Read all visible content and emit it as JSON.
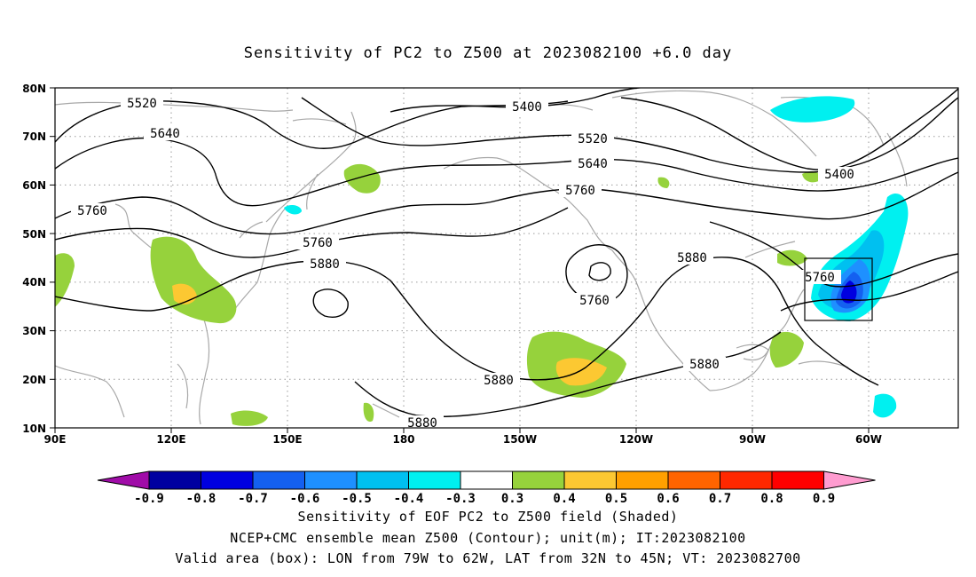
{
  "title": "Sensitivity of PC2 to Z500 at 2023082100 +6.0 day",
  "lat_labels": [
    "80N",
    "70N",
    "60N",
    "50N",
    "40N",
    "30N",
    "20N",
    "10N"
  ],
  "lon_labels": [
    "90E",
    "120E",
    "150E",
    "180",
    "150W",
    "120W",
    "90W",
    "60W"
  ],
  "contour_labels": {
    "c5520a": "5520",
    "c5640a": "5640",
    "c5760a": "5760",
    "c5400a": "5400",
    "c5520b": "5520",
    "c5640b": "5640",
    "c5760b": "5760",
    "c5760c": "5760",
    "c5880a": "5880",
    "c5760d": "5760",
    "c5880b": "5880",
    "c5880c": "5880",
    "c5880d": "5880",
    "c5760e": "5760",
    "c5400b": "5400",
    "c5880e": "5880"
  },
  "colorbar": {
    "labels": [
      "-0.9",
      "-0.8",
      "-0.7",
      "-0.6",
      "-0.5",
      "-0.4",
      "-0.3",
      "0.3",
      "0.4",
      "0.5",
      "0.6",
      "0.7",
      "0.8",
      "0.9"
    ],
    "colors": [
      "#a00ca8",
      "#0000a0",
      "#0000e0",
      "#1460f0",
      "#1e90ff",
      "#00c0f0",
      "#00f0f0",
      "#ffffff",
      "#96d23c",
      "#fcc832",
      "#ffa000",
      "#ff6400",
      "#ff2800",
      "#ff0000",
      "#ff9cd0"
    ]
  },
  "box": {
    "lon_west": "79W",
    "lon_east": "62W",
    "lat_south": "32N",
    "lat_north": "45N"
  },
  "captions": {
    "line1": "Sensitivity of EOF PC2 to Z500 field (Shaded)",
    "line2": "NCEP+CMC ensemble mean Z500 (Contour); unit(m); IT:2023082100",
    "line3": "Valid area (box): LON from 79W to 62W, LAT from 32N to 45N; VT: 2023082700"
  }
}
